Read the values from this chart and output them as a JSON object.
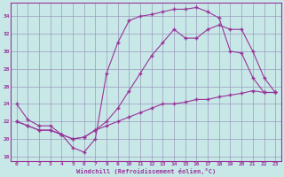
{
  "bg_color": "#c8e8e8",
  "line_color": "#993399",
  "grid_color": "#9999bb",
  "xlabel": "Windchill (Refroidissement éolien,°C)",
  "xlim": [
    -0.5,
    23.5
  ],
  "ylim": [
    17.5,
    35.5
  ],
  "xticks": [
    0,
    1,
    2,
    3,
    4,
    5,
    6,
    7,
    8,
    9,
    10,
    11,
    12,
    13,
    14,
    15,
    16,
    17,
    18,
    19,
    20,
    21,
    22,
    23
  ],
  "yticks": [
    18,
    20,
    22,
    24,
    26,
    28,
    30,
    32,
    34
  ],
  "line1_y": [
    24.0,
    22.2,
    21.5,
    21.5,
    20.5,
    19.0,
    18.5,
    20.0,
    27.5,
    31.0,
    33.5,
    34.0,
    34.2,
    34.5,
    34.8,
    34.8,
    35.0,
    34.5,
    33.8,
    30.0,
    29.8,
    27.0,
    25.3,
    25.3
  ],
  "line2_y": [
    22.0,
    21.5,
    21.0,
    21.0,
    20.5,
    20.0,
    20.2,
    21.0,
    22.0,
    23.5,
    25.5,
    27.5,
    29.5,
    31.0,
    32.5,
    31.5,
    31.5,
    32.5,
    33.0,
    32.5,
    32.5,
    30.0,
    27.0,
    25.3
  ],
  "line3_y": [
    22.0,
    21.5,
    21.0,
    21.0,
    20.5,
    20.0,
    20.2,
    21.0,
    21.5,
    22.0,
    22.5,
    23.0,
    23.5,
    24.0,
    24.0,
    24.2,
    24.5,
    24.5,
    24.8,
    25.0,
    25.2,
    25.5,
    25.3,
    25.3
  ]
}
